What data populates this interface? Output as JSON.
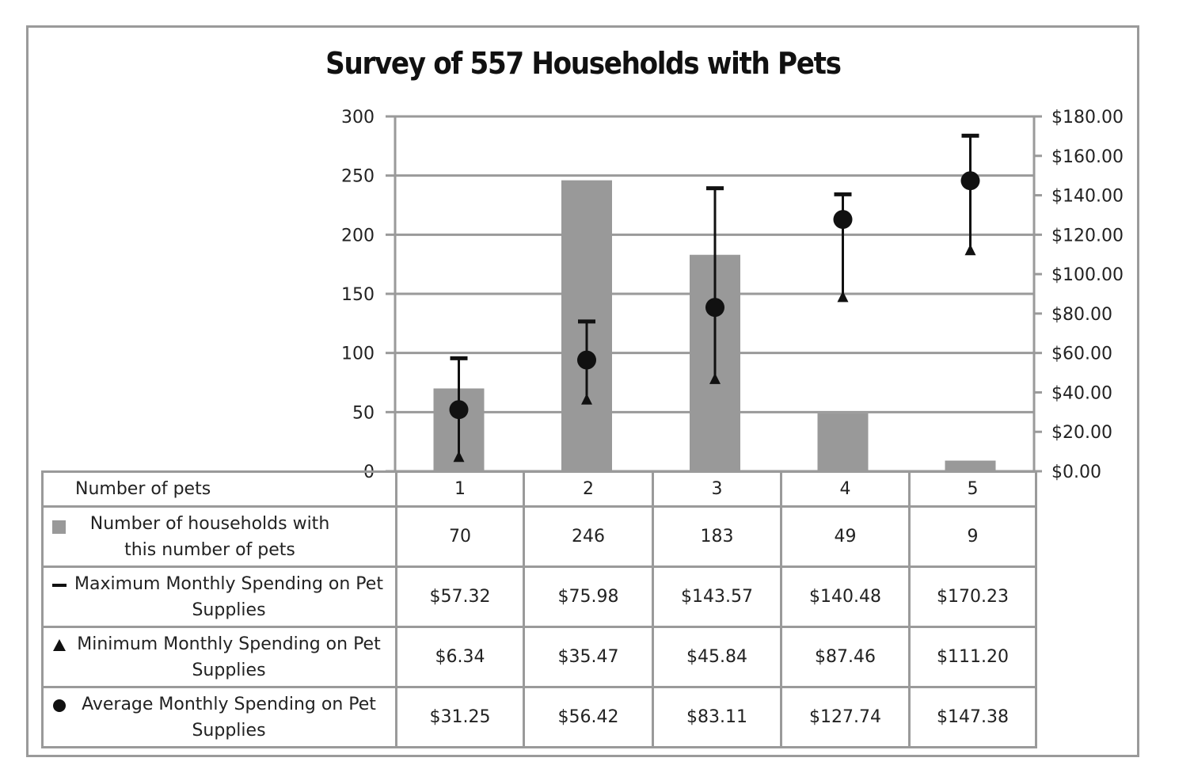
{
  "chart_data": {
    "type": "bar",
    "title": "Survey of 557 Households with Pets",
    "categories": [
      "1",
      "2",
      "3",
      "4",
      "5"
    ],
    "y_left": {
      "ylim": [
        0,
        300
      ],
      "ticks": [
        "300",
        "250",
        "200",
        "150",
        "100",
        "50",
        "0"
      ]
    },
    "y_right": {
      "ylim": [
        0,
        180
      ],
      "ticks": [
        "$180.00",
        "$160.00",
        "$140.00",
        "$120.00",
        "$100.00",
        "$80.00",
        "$60.00",
        "$40.00",
        "$20.00",
        "$0.00"
      ]
    },
    "grid": true,
    "series": [
      {
        "name": "Number of households with this number of pets",
        "type": "bar",
        "axis": "left",
        "color": "#999999",
        "values": [
          70,
          246,
          183,
          49,
          9
        ],
        "labels": [
          "70",
          "246",
          "183",
          "49",
          "9"
        ]
      },
      {
        "name": "Maximum Monthly Spending on Pet Supplies",
        "type": "marker-dash",
        "axis": "right",
        "values": [
          57.32,
          75.98,
          143.57,
          140.48,
          170.23
        ],
        "labels": [
          "$57.32",
          "$75.98",
          "$143.57",
          "$140.48",
          "$170.23"
        ]
      },
      {
        "name": "Minimum Monthly Spending on Pet Supplies",
        "type": "marker-triangle",
        "axis": "right",
        "values": [
          6.34,
          35.47,
          45.84,
          87.46,
          111.2
        ],
        "labels": [
          "$6.34",
          "$35.47",
          "$45.84",
          "$87.46",
          "$111.20"
        ]
      },
      {
        "name": "Average Monthly Spending on Pet Supplies",
        "type": "marker-circle",
        "axis": "right",
        "values": [
          31.25,
          56.42,
          83.11,
          127.74,
          147.38
        ],
        "labels": [
          "$31.25",
          "$56.42",
          "$83.11",
          "$127.74",
          "$147.38"
        ]
      }
    ],
    "table_header_label": "Number of pets"
  }
}
